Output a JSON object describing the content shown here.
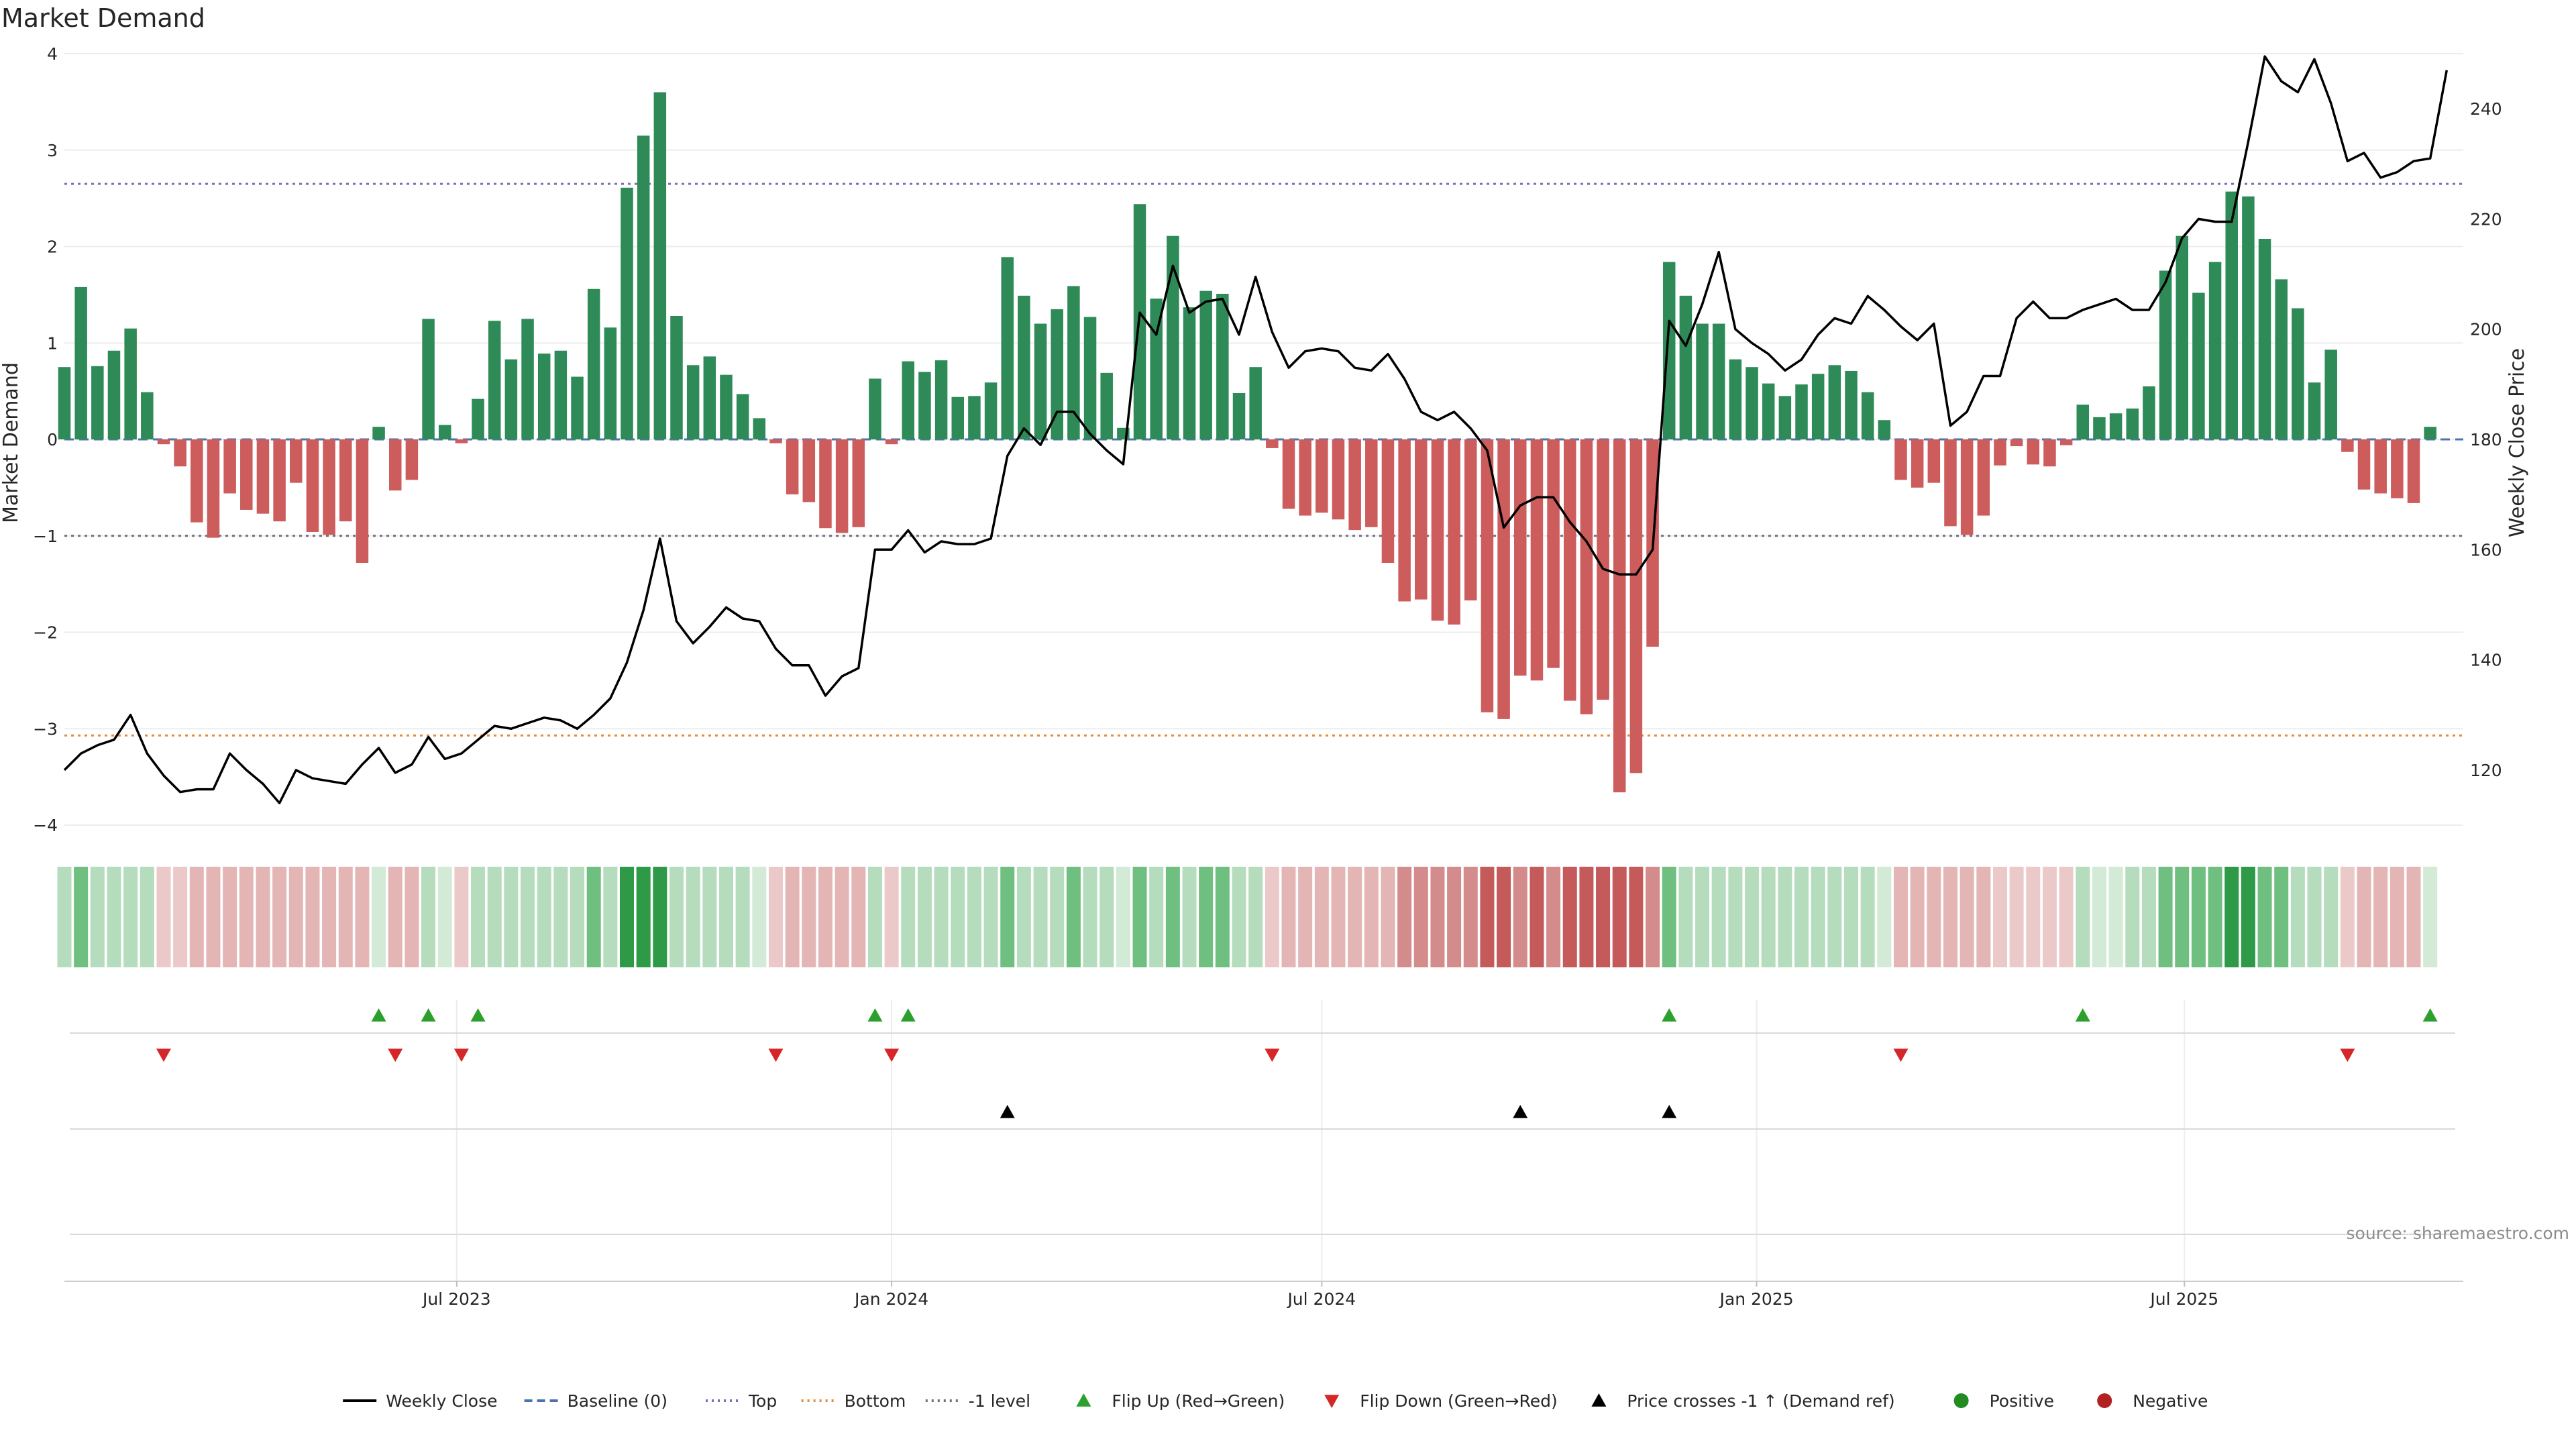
{
  "chart_data": {
    "type": "bar",
    "title": "Market Demand",
    "ylabel_left": "Market Demand",
    "ylabel_right": "Weekly Close Price",
    "source": "source: sharemaestro.com",
    "ylim_left": [
      -4.0,
      4.0
    ],
    "ylim_right": [
      110,
      250
    ],
    "yticks_left": [
      4,
      3,
      2,
      1,
      0,
      -1,
      -2,
      -3,
      -4
    ],
    "ytick_labels_left": [
      "4",
      "3",
      "2",
      "1",
      "0",
      "−1",
      "−2",
      "−3",
      "−4"
    ],
    "yticks_right": [
      240,
      220,
      200,
      180,
      160,
      140,
      120
    ],
    "ytick_labels_right": [
      "240",
      "220",
      "200",
      "180",
      "160",
      "140",
      "120"
    ],
    "x_start": "2023-01-16",
    "x_end": "2025-10-27",
    "xticks": [
      {
        "date": "2023-07-01",
        "label": "Jul 2023"
      },
      {
        "date": "2024-01-01",
        "label": "Jan 2024"
      },
      {
        "date": "2024-07-01",
        "label": "Jul 2024"
      },
      {
        "date": "2025-01-01",
        "label": "Jan 2025"
      },
      {
        "date": "2025-07-01",
        "label": "Jul 2025"
      }
    ],
    "first_week": "2023-01-16",
    "week_step_days": 7,
    "reference_lines": [
      {
        "name": "Top",
        "value": 2.65,
        "color": "#7b6fb0"
      },
      {
        "name": "Bottom",
        "value": -3.07,
        "color": "#e6893a"
      },
      {
        "name": "-1 level",
        "value": -1.0,
        "color": "#6f6f7f"
      },
      {
        "name": "Baseline (0)",
        "value": 0,
        "color": "#4c72b0"
      }
    ],
    "demand": [
      0.75,
      1.58,
      0.76,
      0.92,
      1.15,
      0.49,
      -0.05,
      -0.28,
      -0.86,
      -1.02,
      -0.56,
      -0.73,
      -0.77,
      -0.85,
      -0.45,
      -0.96,
      -0.99,
      -0.85,
      -1.28,
      0.13,
      -0.53,
      -0.42,
      1.25,
      0.15,
      -0.04,
      0.42,
      1.23,
      0.83,
      1.25,
      0.89,
      0.92,
      0.65,
      1.56,
      1.16,
      2.61,
      3.15,
      3.6,
      1.28,
      0.77,
      0.86,
      0.67,
      0.47,
      0.22,
      -0.04,
      -0.57,
      -0.65,
      -0.92,
      -0.97,
      -0.91,
      0.63,
      -0.05,
      0.81,
      0.7,
      0.82,
      0.44,
      0.45,
      0.59,
      1.89,
      1.49,
      1.2,
      1.35,
      1.59,
      1.27,
      0.69,
      0.12,
      2.44,
      1.46,
      2.11,
      1.37,
      1.54,
      1.51,
      0.48,
      0.75,
      -0.09,
      -0.72,
      -0.79,
      -0.76,
      -0.83,
      -0.94,
      -0.91,
      -1.28,
      -1.68,
      -1.66,
      -1.88,
      -1.92,
      -1.67,
      -2.83,
      -2.9,
      -2.45,
      -2.5,
      -2.37,
      -2.71,
      -2.85,
      -2.7,
      -3.66,
      -3.46,
      -2.15,
      1.84,
      1.49,
      1.2,
      1.2,
      0.83,
      0.75,
      0.58,
      0.45,
      0.57,
      0.68,
      0.77,
      0.71,
      0.49,
      0.2,
      -0.42,
      -0.5,
      -0.45,
      -0.9,
      -0.99,
      -0.79,
      -0.27,
      -0.07,
      -0.26,
      -0.28,
      -0.06,
      0.36,
      0.23,
      0.27,
      0.32,
      0.55,
      1.75,
      2.11,
      1.52,
      1.84,
      2.57,
      2.52,
      2.08,
      1.66,
      1.36,
      0.59,
      0.93,
      -0.13,
      -0.52,
      -0.56,
      -0.61,
      -0.66,
      0.13
    ],
    "price": [
      120,
      123,
      124.5,
      125.5,
      130,
      123,
      119,
      116,
      116.5,
      116.5,
      123,
      120,
      117.5,
      114,
      120,
      118.5,
      118,
      117.5,
      121,
      124,
      119.5,
      121,
      126,
      122,
      123,
      125.5,
      128,
      127.5,
      128.5,
      129.5,
      129,
      127.5,
      130,
      133,
      139.5,
      149,
      162,
      147,
      143,
      146,
      149.5,
      147.5,
      147,
      142,
      139,
      139,
      133.5,
      137,
      138.5,
      160,
      160,
      163.5,
      159.5,
      161.5,
      161,
      161,
      162,
      177,
      182,
      179,
      185,
      185,
      181,
      178,
      175.5,
      203,
      199,
      211.5,
      203,
      205,
      205.5,
      199,
      209.5,
      199.5,
      193,
      196,
      196.5,
      196,
      193,
      192.5,
      195.5,
      191,
      185,
      183.5,
      185,
      182,
      178,
      164,
      168,
      169.5,
      169.5,
      165,
      161.5,
      156.5,
      155.5,
      155.5,
      160,
      201.5,
      197,
      204.5,
      214,
      200,
      197.5,
      195.5,
      192.5,
      194.5,
      199,
      202,
      201,
      206,
      203.5,
      200.5,
      198,
      201,
      182.5,
      185,
      191.5,
      191.5,
      202,
      205,
      202,
      202,
      203.5,
      204.5,
      205.5,
      203.5,
      203.5,
      208.5,
      216.5,
      220,
      219.5,
      219.5,
      234,
      249.5,
      245,
      243,
      249,
      241,
      230.5,
      232,
      227.5,
      228.5,
      230.5,
      231,
      247
    ],
    "heat_colors": {
      "strong_green": "#2e9a48",
      "mid_green": "#6fbf80",
      "light_green": "#b5dcbd",
      "faint_green": "#d2ead6",
      "faint_red": "#ecc9c9",
      "light_red": "#e4b5b5",
      "mid_red": "#d48b8b",
      "strong_red": "#c45a5a"
    },
    "flip_up_weeks": [
      19,
      22,
      25,
      49,
      51,
      97,
      122,
      143
    ],
    "flip_down_weeks": [
      6,
      20,
      24,
      43,
      50,
      73,
      111,
      138
    ],
    "price_cross_weeks": [
      57,
      88,
      97
    ],
    "series_colors": {
      "positive_bar": "#2e8b57",
      "negative_bar": "#cd5c5c",
      "price_line": "#000000",
      "flip_up": "#2ca02c",
      "flip_down": "#d62728",
      "price_cross": "#000000",
      "positive_dot": "#228b22",
      "negative_dot": "#b22222"
    },
    "legend": [
      {
        "label": "Weekly Close",
        "kind": "line",
        "color": "#000000"
      },
      {
        "label": "Baseline (0)",
        "kind": "dash",
        "color": "#4c72b0"
      },
      {
        "label": "Top",
        "kind": "dot",
        "color": "#7b6fb0"
      },
      {
        "label": "Bottom",
        "kind": "dot",
        "color": "#e6893a"
      },
      {
        "label": "-1 level",
        "kind": "dot",
        "color": "#6f6f7f"
      },
      {
        "label": "Flip Up (Red→Green)",
        "kind": "tri-up",
        "color": "#2ca02c"
      },
      {
        "label": "Flip Down (Green→Red)",
        "kind": "tri-down",
        "color": "#d62728"
      },
      {
        "label": "Price crosses -1 ↑ (Demand ref)",
        "kind": "tri-up",
        "color": "#000000"
      },
      {
        "label": "Positive",
        "kind": "circle",
        "color": "#228b22"
      },
      {
        "label": "Negative",
        "kind": "circle",
        "color": "#b22222"
      }
    ]
  }
}
